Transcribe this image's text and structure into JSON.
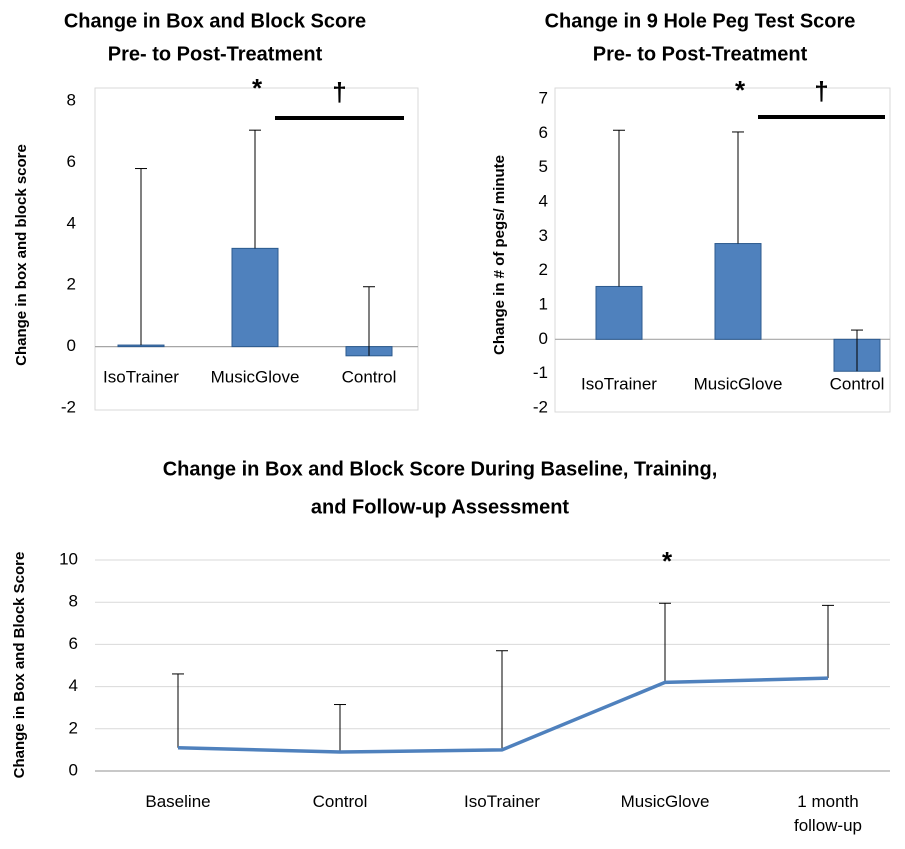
{
  "chart_data": [
    {
      "type": "bar",
      "title": [
        "Change in Box and Block Score",
        "Pre- to Post-Treatment"
      ],
      "ylabel": "Change in box and block score",
      "categories": [
        "IsoTrainer",
        "MusicGlove",
        "Control"
      ],
      "values": [
        0.05,
        3.2,
        -0.3
      ],
      "errors": [
        5.75,
        3.85,
        2.25
      ],
      "color": "#4f81bd",
      "ylim": [
        -2,
        8
      ],
      "yticks": [
        -2,
        0,
        2,
        4,
        6,
        8
      ],
      "grid": false,
      "annotations": [
        {
          "text": "*",
          "category": "MusicGlove"
        },
        {
          "text": "†",
          "from": "MusicGlove",
          "to": "Control"
        }
      ]
    },
    {
      "type": "bar",
      "title": [
        "Change in 9 Hole Peg Test Score",
        "Pre- to Post-Treatment"
      ],
      "ylabel": "Change in # of pegs/ minute",
      "categories": [
        "IsoTrainer",
        "MusicGlove",
        "Control"
      ],
      "values": [
        1.54,
        2.79,
        -0.93
      ],
      "errors": [
        4.55,
        3.25,
        1.2
      ],
      "color": "#4f81bd",
      "ylim": [
        -2,
        7
      ],
      "yticks": [
        -2,
        -1,
        0,
        1,
        2,
        3,
        4,
        5,
        6,
        7
      ],
      "grid": false,
      "annotations": [
        {
          "text": "*",
          "category": "MusicGlove"
        },
        {
          "text": "†",
          "from": "MusicGlove",
          "to": "Control"
        }
      ]
    },
    {
      "type": "line",
      "title": [
        "Change in Box and Block Score During Baseline, Training,",
        "and Follow-up Assessment"
      ],
      "ylabel": "Change in Box and Block Score",
      "categories": [
        "Baseline",
        "Control",
        "IsoTrainer",
        "MusicGlove",
        "1 month follow-up"
      ],
      "values": [
        1.1,
        0.9,
        1.0,
        4.2,
        4.4
      ],
      "errors": [
        3.5,
        2.25,
        4.7,
        3.75,
        3.45
      ],
      "color": "#4f81bd",
      "ylim": [
        0,
        10
      ],
      "yticks": [
        0,
        2,
        4,
        6,
        8,
        10
      ],
      "grid": true,
      "annotations": [
        {
          "text": "*",
          "category": "MusicGlove"
        }
      ]
    }
  ]
}
